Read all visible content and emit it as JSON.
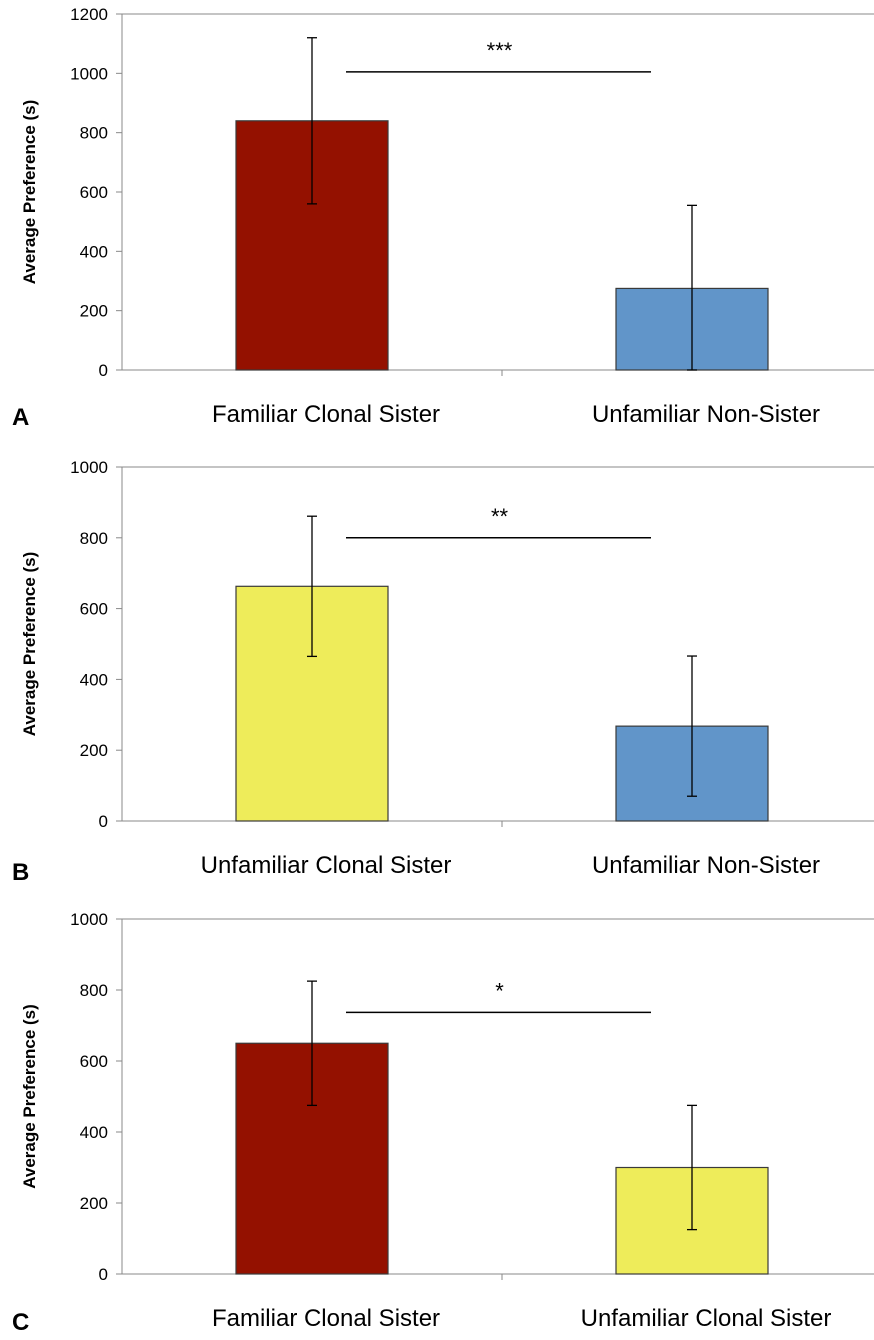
{
  "chart_data": [
    {
      "type": "bar",
      "panel_label": "A",
      "ylabel": "Average Preference (s)",
      "ylim": [
        0,
        1200
      ],
      "yticks": [
        0,
        200,
        400,
        600,
        800,
        1000,
        1200
      ],
      "categories": [
        "Familiar Clonal Sister",
        "Unfamiliar Non-Sister"
      ],
      "values": [
        840,
        275
      ],
      "errors": [
        280,
        280
      ],
      "colors": [
        "#941100",
        "#6195c9"
      ],
      "significance": "***",
      "significance_level": 1005
    },
    {
      "type": "bar",
      "panel_label": "B",
      "ylabel": "Average Preference (s)",
      "ylim": [
        0,
        1000
      ],
      "yticks": [
        0,
        200,
        400,
        600,
        800,
        1000
      ],
      "categories": [
        "Unfamiliar Clonal Sister",
        "Unfamiliar Non-Sister"
      ],
      "values": [
        663,
        268
      ],
      "errors": [
        198,
        198
      ],
      "colors": [
        "#eeec5a",
        "#6195c9"
      ],
      "significance": "**",
      "significance_level": 800
    },
    {
      "type": "bar",
      "panel_label": "C",
      "ylabel": "Average Preference (s)",
      "ylim": [
        0,
        1000
      ],
      "yticks": [
        0,
        200,
        400,
        600,
        800,
        1000
      ],
      "categories": [
        "Familiar  Clonal Sister",
        "Unfamiliar Clonal Sister"
      ],
      "values": [
        650,
        300
      ],
      "errors": [
        175,
        175
      ],
      "colors": [
        "#941100",
        "#eeec5a"
      ],
      "significance": "*",
      "significance_level": 737
    }
  ]
}
